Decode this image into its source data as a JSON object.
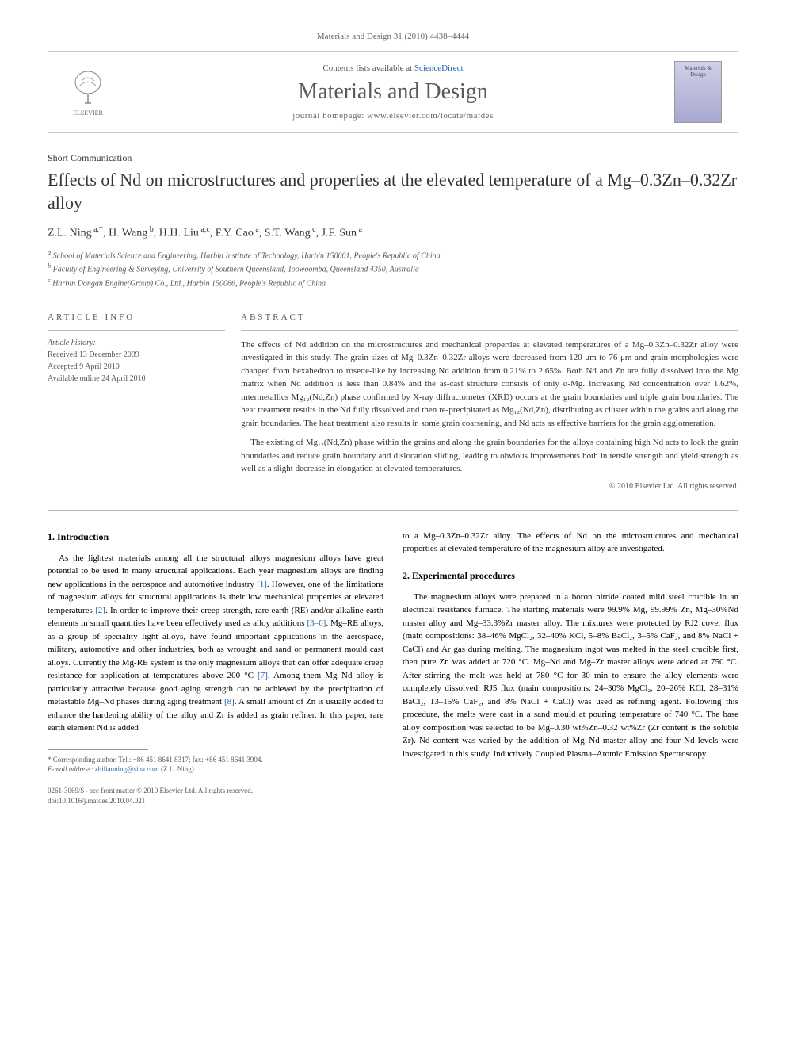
{
  "journal_ref": "Materials and Design 31 (2010) 4438–4444",
  "header": {
    "contents_line_prefix": "Contents lists available at ",
    "contents_link": "ScienceDirect",
    "journal_title": "Materials and Design",
    "homepage_label": "journal homepage: www.elsevier.com/locate/matdes",
    "publisher": "ELSEVIER",
    "cover_text": "Materials & Design"
  },
  "article": {
    "type": "Short Communication",
    "title": "Effects of Nd on microstructures and properties at the elevated temperature of a Mg–0.3Zn–0.32Zr alloy",
    "authors_html": "Z.L. Ning<sup> a,*</sup>, H. Wang<sup> b</sup>, H.H. Liu<sup> a,c</sup>, F.Y. Cao<sup> a</sup>, S.T. Wang<sup> c</sup>, J.F. Sun<sup> a</sup>",
    "affiliations": [
      "a School of Materials Science and Engineering, Harbin Institute of Technology, Harbin 150001, People's Republic of China",
      "b Faculty of Engineering & Surveying, University of Southern Queensland, Toowoomba, Queensland 4350, Australia",
      "c Harbin Dongan Engine(Group) Co., Ltd., Harbin 150066, People's Republic of China"
    ]
  },
  "info": {
    "heading": "ARTICLE INFO",
    "history_label": "Article history:",
    "received": "Received 13 December 2009",
    "accepted": "Accepted 9 April 2010",
    "online": "Available online 24 April 2010"
  },
  "abstract": {
    "heading": "ABSTRACT",
    "p1": "The effects of Nd addition on the microstructures and mechanical properties at elevated temperatures of a Mg–0.3Zn–0.32Zr alloy were investigated in this study. The grain sizes of Mg–0.3Zn–0.32Zr alloys were decreased from 120 μm to 76 μm and grain morphologies were changed from hexahedron to rosette-like by increasing Nd addition from 0.21% to 2.65%. Both Nd and Zn are fully dissolved into the Mg matrix when Nd addition is less than 0.84% and the as-cast structure consists of only α-Mg. Increasing Nd concentration over 1.62%, intermetallics Mg₁₂(Nd,Zn) phase confirmed by X-ray diffractometer (XRD) occurs at the grain boundaries and triple grain boundaries. The heat treatment results in the Nd fully dissolved and then re-precipitated as Mg₁₂(Nd,Zn), distributing as cluster within the grains and along the grain boundaries. The heat treatment also results in some grain coarsening, and Nd acts as effective barriers for the grain agglomeration.",
    "p2": "The existing of Mg₁₂(Nd,Zn) phase within the grains and along the grain boundaries for the alloys containing high Nd acts to lock the grain boundaries and reduce grain boundary and dislocation sliding, leading to obvious improvements both in tensile strength and yield strength as well as a slight decrease in elongation at elevated temperatures.",
    "copyright": "© 2010 Elsevier Ltd. All rights reserved."
  },
  "sections": {
    "intro_heading": "1. Introduction",
    "intro_text": "As the lightest materials among all the structural alloys magnesium alloys have great potential to be used in many structural applications. Each year magnesium alloys are finding new applications in the aerospace and automotive industry [1]. However, one of the limitations of magnesium alloys for structural applications is their low mechanical properties at elevated temperatures [2]. In order to improve their creep strength, rare earth (RE) and/or alkaline earth elements in small quantities have been effectively used as alloy additions [3–6]. Mg–RE alloys, as a group of speciality light alloys, have found important applications in the aerospace, military, automotive and other industries, both as wrought and sand or permanent mould cast alloys. Currently the Mg-RE system is the only magnesium alloys that can offer adequate creep resistance for application at temperatures above 200 °C [7]. Among them Mg–Nd alloy is particularly attractive because good aging strength can be achieved by the precipitation of metastable Mg–Nd phases during aging treatment [8]. A small amount of Zn is usually added to enhance the hardening ability of the alloy and Zr is added as grain refiner. In this paper, rare earth element Nd is added",
    "col2_intro_tail": "to a Mg–0.3Zn–0.32Zr alloy. The effects of Nd on the microstructures and mechanical properties at elevated temperature of the magnesium alloy are investigated.",
    "exp_heading": "2. Experimental procedures",
    "exp_text": "The magnesium alloys were prepared in a boron nitride coated mild steel crucible in an electrical resistance furnace. The starting materials were 99.9% Mg, 99.99% Zn, Mg–30%Nd master alloy and Mg–33.3%Zr master alloy. The mixtures were protected by RJ2 cover flux (main compositions: 38–46% MgCl₂, 32–40% KCl, 5–8% BaCl₂, 3–5% CaF₂, and 8% NaCl + CaCl) and Ar gas during melting. The magnesium ingot was melted in the steel crucible first, then pure Zn was added at 720 °C. Mg–Nd and Mg–Zr master alloys were added at 750 °C. After stirring the melt was held at 780 °C for 30 min to ensure the alloy elements were completely dissolved. RJ5 flux (main compositions: 24–30% MgCl₂, 20–26% KCl, 28–31% BaCl₂, 13–15% CaF₂, and 8% NaCl + CaCl) was used as refining agent. Following this procedure, the melts were cast in a sand mould at pouring temperature of 740 °C. The base alloy composition was selected to be Mg–0.30 wt%Zn–0.32 wt%Zr (Zr content is the soluble Zr). Nd content was varied by the addition of Mg–Nd master alloy and four Nd levels were investigated in this study. Inductively Coupled Plasma–Atomic Emission Spectroscopy"
  },
  "footnote": {
    "corresponding": "* Corresponding author. Tel.: +86 451 8641 8317; fax: +86 451 8641 3904.",
    "email_label": "E-mail address:",
    "email": "zhilianning@sina.com",
    "email_tail": "(Z.L. Ning)."
  },
  "footer": {
    "line1": "0261-3069/$ - see front matter © 2010 Elsevier Ltd. All rights reserved.",
    "line2": "doi:10.1016/j.matdes.2010.04.021"
  },
  "colors": {
    "link": "#2266aa",
    "text": "#333333",
    "muted": "#666666",
    "border": "#cccccc"
  }
}
